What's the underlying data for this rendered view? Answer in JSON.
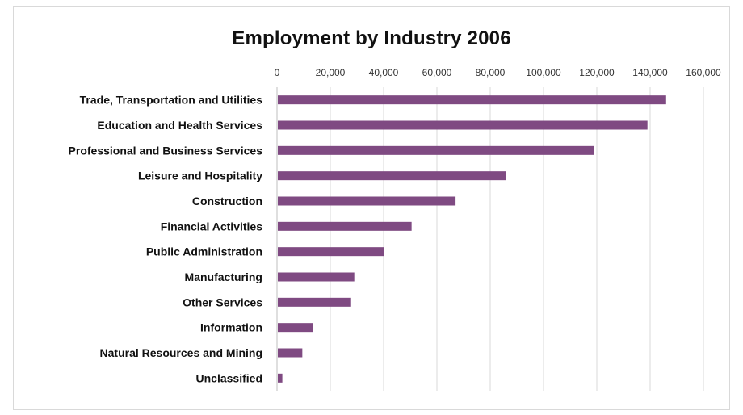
{
  "chart_data": {
    "type": "bar",
    "orientation": "horizontal",
    "title": "Employment by Industry 2006",
    "xlabel": "",
    "ylabel": "",
    "xlim": [
      0,
      160000
    ],
    "ticks": [
      0,
      20000,
      40000,
      60000,
      80000,
      100000,
      120000,
      140000,
      160000
    ],
    "tick_labels": [
      "0",
      "20,000",
      "40,000",
      "60,000",
      "80,000",
      "100,000",
      "120,000",
      "140,000",
      "160,000"
    ],
    "grid": true,
    "bar_color": "#7f4a82",
    "categories": [
      "Trade, Transportation and Utilities",
      "Education and Health Services",
      "Professional and Business Services",
      "Leisure and Hospitality",
      "Construction",
      "Financial Activities",
      "Public Administration",
      "Manufacturing",
      "Other Services",
      "Information",
      "Natural Resources and Mining",
      "Unclassified"
    ],
    "values": [
      146000,
      139000,
      119000,
      86000,
      67000,
      50500,
      40000,
      29000,
      27500,
      13500,
      9500,
      2000
    ]
  }
}
